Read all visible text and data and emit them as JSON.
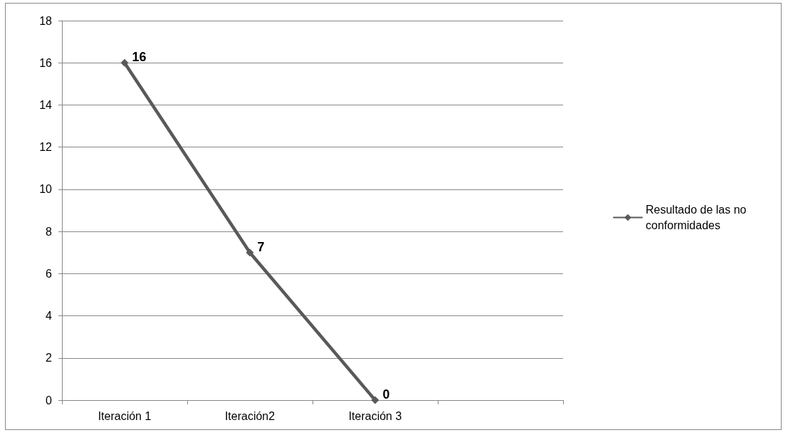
{
  "chart_data": {
    "type": "line",
    "categories": [
      "Iteración 1",
      "Iteración2",
      "Iteración 3",
      null
    ],
    "series": [
      {
        "name": "Resultado de las no conformidades",
        "color": "#595959",
        "values": [
          16,
          7,
          0,
          null
        ]
      }
    ],
    "ylim": [
      0,
      18
    ],
    "yticks": [
      0,
      2,
      4,
      6,
      8,
      10,
      12,
      14,
      16,
      18
    ],
    "grid": "y",
    "legend": "right",
    "marker": "diamond",
    "data_labels": true
  }
}
